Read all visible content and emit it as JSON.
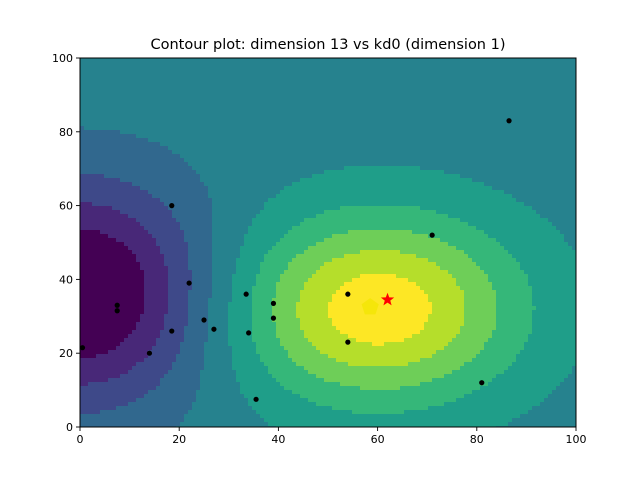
{
  "chart_data": {
    "type": "contour",
    "title": "Contour plot: dimension 13 vs kd0 (dimension 1)",
    "xlabel": "",
    "ylabel": "",
    "xlim": [
      0,
      100
    ],
    "ylim": [
      0,
      100
    ],
    "x_ticks": [
      0,
      20,
      40,
      60,
      80,
      100
    ],
    "y_ticks": [
      0,
      20,
      40,
      60,
      80,
      100
    ],
    "grid": false,
    "colormap": "viridis",
    "contour_levels": 10,
    "field": {
      "background": 0.45,
      "peak": {
        "x": 60,
        "y": 32,
        "amp": 0.52,
        "sx": 20,
        "sy": 18
      },
      "trough": {
        "x": 0,
        "y": 36,
        "amp": 0.5,
        "sx": 18,
        "sy": 21
      },
      "min_value": 0.0,
      "max_value": 1.0
    },
    "points": [
      {
        "x": 0.5,
        "y": 21.5
      },
      {
        "x": 7.5,
        "y": 33
      },
      {
        "x": 7.5,
        "y": 31.5
      },
      {
        "x": 14,
        "y": 20
      },
      {
        "x": 18.5,
        "y": 60
      },
      {
        "x": 18.5,
        "y": 26
      },
      {
        "x": 22,
        "y": 39
      },
      {
        "x": 25,
        "y": 29
      },
      {
        "x": 27,
        "y": 26.5
      },
      {
        "x": 33.5,
        "y": 36
      },
      {
        "x": 34,
        "y": 25.5
      },
      {
        "x": 35.5,
        "y": 7.5
      },
      {
        "x": 39,
        "y": 33.5
      },
      {
        "x": 39,
        "y": 29.5
      },
      {
        "x": 54,
        "y": 36
      },
      {
        "x": 54,
        "y": 23
      },
      {
        "x": 71,
        "y": 52
      },
      {
        "x": 81,
        "y": 12
      },
      {
        "x": 86.5,
        "y": 83
      }
    ],
    "pentagon_marker": {
      "x": 58.5,
      "y": 32.5,
      "color": "#f5e60a"
    },
    "star_marker": {
      "x": 62,
      "y": 34.5,
      "color": "#ff0000"
    },
    "point_color": "#000000"
  }
}
